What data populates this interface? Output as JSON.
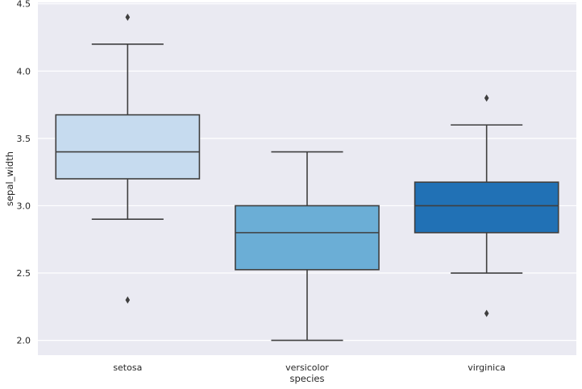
{
  "chart_data": {
    "type": "box",
    "xlabel": "species",
    "ylabel": "sepal_width",
    "ylim": [
      1.89,
      4.51
    ],
    "yticks": [
      2.0,
      2.5,
      3.0,
      3.5,
      4.0,
      4.5
    ],
    "ytick_labels": [
      "2.0",
      "2.5",
      "3.0",
      "3.5",
      "4.0",
      "4.5"
    ],
    "grid": true,
    "background": "#eaeaf2",
    "categories": [
      "setosa",
      "versicolor",
      "virginica"
    ],
    "boxes": [
      {
        "category": "setosa",
        "whisker_low": 2.9,
        "q1": 3.2,
        "median": 3.4,
        "q3": 3.675,
        "whisker_high": 4.2,
        "outliers": [
          4.4,
          2.3
        ],
        "color": "#c6dbef"
      },
      {
        "category": "versicolor",
        "whisker_low": 2.0,
        "q1": 2.525,
        "median": 2.8,
        "q3": 3.0,
        "whisker_high": 3.4,
        "outliers": [],
        "color": "#6baed6"
      },
      {
        "category": "virginica",
        "whisker_low": 2.5,
        "q1": 2.8,
        "median": 3.0,
        "q3": 3.175,
        "whisker_high": 3.6,
        "outliers": [
          3.8,
          2.2
        ],
        "color": "#2171b5"
      }
    ],
    "line_color": "#3f3f3f"
  }
}
